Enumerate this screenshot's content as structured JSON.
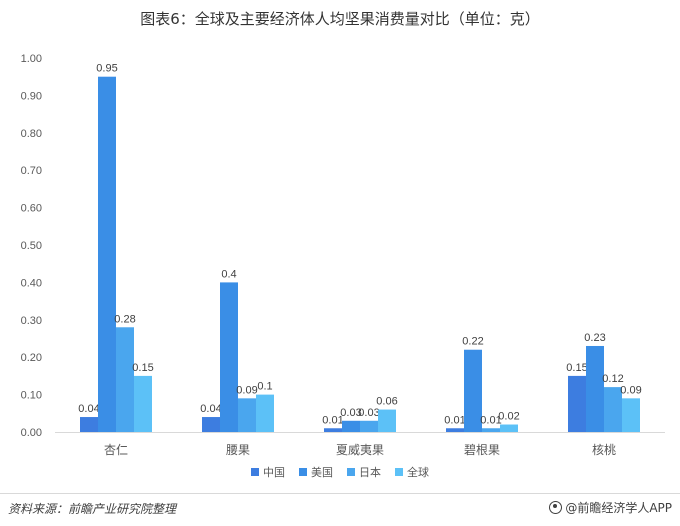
{
  "title": "图表6：全球及主要经济体人均坚果消费量对比（单位：克）",
  "source": "资料来源：前瞻产业研究院整理",
  "brand": "@前瞻经济学人APP",
  "chart_data": {
    "type": "bar",
    "title": "图表6：全球及主要经济体人均坚果消费量对比（单位：克）",
    "categories": [
      "杏仁",
      "腰果",
      "夏威夷果",
      "碧根果",
      "核桃"
    ],
    "series": [
      {
        "name": "中国",
        "color": "#3d7de0",
        "values": [
          0.04,
          0.04,
          0.01,
          0.01,
          0.15
        ],
        "labels": [
          "0.04",
          "0.04",
          "0.01",
          "0.01",
          "0.15"
        ]
      },
      {
        "name": "美国",
        "color": "#3a8ee6",
        "values": [
          0.95,
          0.4,
          0.03,
          0.22,
          0.23
        ],
        "labels": [
          "0.95",
          "0.4",
          "0.03",
          "0.22",
          "0.23"
        ]
      },
      {
        "name": "日本",
        "color": "#4aa6ee",
        "values": [
          0.28,
          0.09,
          0.03,
          0.01,
          0.12
        ],
        "labels": [
          "0.28",
          "0.09",
          "0.03",
          "0.01",
          "0.12"
        ]
      },
      {
        "name": "全球",
        "color": "#5cc1f7",
        "values": [
          0.15,
          0.1,
          0.06,
          0.02,
          0.09
        ],
        "labels": [
          "0.15",
          "0.1",
          "0.06",
          "0.02",
          "0.09"
        ]
      }
    ],
    "ylim": [
      0,
      1.0
    ],
    "yticks": [
      "0.00",
      "0.10",
      "0.20",
      "0.30",
      "0.40",
      "0.50",
      "0.60",
      "0.70",
      "0.80",
      "0.90",
      "1.00"
    ],
    "xlabel": "",
    "ylabel": "",
    "grid": false,
    "legend_position": "bottom"
  }
}
